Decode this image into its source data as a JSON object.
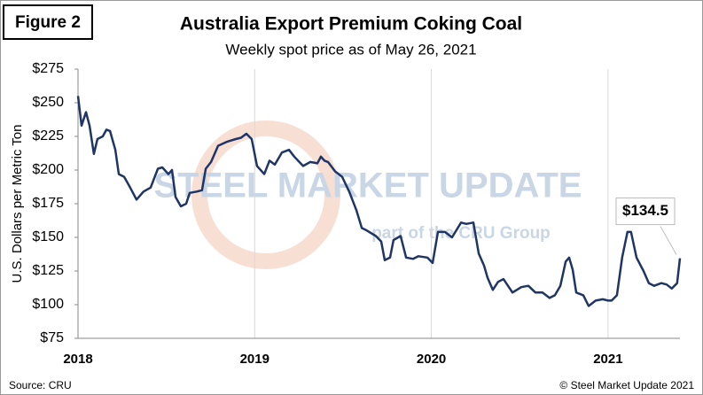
{
  "chart_data": {
    "type": "line",
    "figure_label": "Figure 2",
    "title": "Australia Export Premium Coking Coal",
    "subtitle": "Weekly spot price as of May 26, 2021",
    "y_label": "U.S. Dollars per Metric Ton",
    "source": "Source: CRU",
    "copyright": "© Steel Market Update 2021",
    "watermark": "STEEL MARKET UPDATE",
    "watermark_sub": "part of the CRU Group",
    "x": [
      2018.0,
      2018.02,
      2018.045,
      2018.065,
      2018.09,
      2018.11,
      2018.14,
      2018.161,
      2018.181,
      2018.211,
      2018.231,
      2018.261,
      2018.291,
      2018.331,
      2018.371,
      2018.411,
      2018.452,
      2018.477,
      2018.512,
      2018.532,
      2018.552,
      2018.582,
      2018.612,
      2018.632,
      2018.672,
      2018.702,
      2018.723,
      2018.753,
      2018.793,
      2018.843,
      2018.893,
      2018.923,
      2018.953,
      2018.983,
      2019.013,
      2019.054,
      2019.084,
      2019.114,
      2019.154,
      2019.194,
      2019.224,
      2019.274,
      2019.315,
      2019.355,
      2019.375,
      2019.395,
      2019.415,
      2019.455,
      2019.495,
      2019.535,
      2019.576,
      2019.606,
      2019.636,
      2019.686,
      2019.716,
      2019.736,
      2019.766,
      2019.786,
      2019.826,
      2019.857,
      2019.897,
      2019.927,
      2019.977,
      2020.007,
      2020.037,
      2020.077,
      2020.117,
      2020.168,
      2020.198,
      2020.238,
      2020.268,
      2020.298,
      2020.318,
      2020.348,
      2020.378,
      2020.408,
      2020.459,
      2020.509,
      2020.549,
      2020.589,
      2020.629,
      2020.669,
      2020.699,
      2020.73,
      2020.76,
      2020.78,
      2020.8,
      2020.82,
      2020.86,
      2020.89,
      2020.93,
      2020.97,
      2021.0,
      2021.02,
      2021.05,
      2021.08,
      2021.11,
      2021.13,
      2021.161,
      2021.201,
      2021.231,
      2021.261,
      2021.301,
      2021.331,
      2021.361,
      2021.391,
      2021.407
    ],
    "series": [
      {
        "name": "Premium Coking Coal",
        "color": "#1f3566",
        "values": [
          255,
          233,
          243,
          233,
          212,
          223,
          225,
          230,
          229,
          215,
          197,
          195,
          188,
          178,
          184,
          187,
          201,
          202,
          197,
          200,
          180,
          173,
          175,
          183,
          184,
          185,
          201,
          206,
          218,
          221,
          223,
          224,
          227,
          223,
          203,
          197,
          207,
          204,
          213,
          215,
          210,
          203,
          206,
          205,
          210,
          207,
          206,
          199,
          195,
          184,
          170,
          157,
          155,
          151,
          147,
          133,
          135,
          148,
          151,
          135,
          134,
          136,
          135,
          131,
          154,
          154,
          150,
          161,
          160,
          161,
          138,
          129,
          120,
          111,
          117,
          119,
          109,
          113,
          114,
          109,
          109,
          105,
          107,
          114,
          132,
          135,
          126,
          109,
          107,
          99,
          103,
          104,
          103,
          103,
          107,
          135,
          154,
          154,
          135,
          125,
          116,
          114,
          116,
          115,
          112,
          116,
          134.5
        ],
        "value_labels": [
          null,
          null,
          null,
          null,
          null,
          null,
          null,
          null,
          null,
          null,
          null,
          null,
          null,
          null,
          null,
          null,
          null,
          null,
          null,
          null,
          null,
          null,
          null,
          null,
          null,
          null,
          null,
          null,
          null,
          null,
          null,
          null,
          null,
          null,
          null,
          null,
          null,
          null,
          null,
          null,
          null,
          null,
          null,
          null,
          null,
          null,
          null,
          null,
          null,
          null,
          null,
          null,
          null,
          null,
          null,
          null,
          null,
          null,
          null,
          null,
          null,
          null,
          null,
          null,
          null,
          null,
          null,
          null,
          null,
          null,
          null,
          null,
          null,
          null,
          null,
          null,
          null,
          null,
          null,
          null,
          null,
          null,
          null,
          null,
          null,
          null,
          null,
          null,
          null,
          null,
          null,
          null,
          null,
          null,
          null,
          null,
          null,
          null,
          null,
          null,
          null,
          null,
          null,
          null,
          null,
          null,
          "$134.5"
        ]
      }
    ],
    "xlim": [
      2018,
      2021.407
    ],
    "xticks": [
      2018,
      2019,
      2020,
      2021
    ],
    "ylim": [
      75,
      275
    ],
    "yticks": [
      {
        "value": 75,
        "label": "$75"
      },
      {
        "value": 100,
        "label": "$100"
      },
      {
        "value": 125,
        "label": "$125"
      },
      {
        "value": 150,
        "label": "$150"
      },
      {
        "value": 175,
        "label": "$175"
      },
      {
        "value": 200,
        "label": "$200"
      },
      {
        "value": 225,
        "label": "$225"
      },
      {
        "value": 250,
        "label": "$250"
      },
      {
        "value": 275,
        "label": "$275"
      }
    ],
    "grid": "x"
  }
}
